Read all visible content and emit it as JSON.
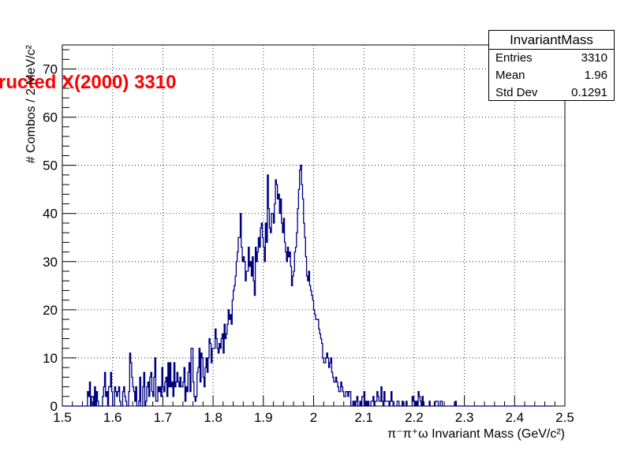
{
  "chart_data": {
    "type": "histogram",
    "title": "ructed X(2000) 3310",
    "xlabel": "π⁻π⁺ω Invariant Mass (GeV/c²)",
    "ylabel": "# Combos / 2 MeV/c²",
    "xlim": [
      1.5,
      2.5
    ],
    "ylim": [
      0,
      75
    ],
    "bin_width": 0.002,
    "grid": true,
    "line_color": "#000080",
    "title_color": "#ff0000",
    "x_ticks": [
      "1.5",
      "1.6",
      "1.7",
      "1.8",
      "1.9",
      "2",
      "2.1",
      "2.2",
      "2.3",
      "2.4",
      "2.5"
    ],
    "y_ticks": [
      "0",
      "10",
      "20",
      "30",
      "40",
      "50",
      "60",
      "70"
    ],
    "bin_centers": [
      1.501,
      1.503,
      1.505,
      1.507,
      1.509,
      1.511,
      1.513,
      1.515,
      1.517,
      1.519,
      1.521,
      1.523,
      1.525,
      1.527,
      1.529,
      1.531,
      1.533,
      1.535,
      1.537,
      1.539,
      1.541,
      1.543,
      1.545,
      1.547,
      1.549,
      1.551,
      1.553,
      1.555,
      1.557,
      1.559,
      1.561,
      1.563,
      1.565,
      1.567,
      1.569,
      1.571,
      1.573,
      1.575,
      1.577,
      1.579,
      1.581,
      1.583,
      1.585,
      1.587,
      1.589,
      1.591,
      1.593,
      1.595,
      1.597,
      1.599,
      1.601,
      1.603,
      1.605,
      1.607,
      1.609,
      1.611,
      1.613,
      1.615,
      1.617,
      1.619,
      1.621,
      1.623,
      1.625,
      1.627,
      1.629,
      1.631,
      1.633,
      1.635,
      1.637,
      1.639,
      1.641,
      1.643,
      1.645,
      1.647,
      1.649,
      1.651,
      1.653,
      1.655,
      1.657,
      1.659,
      1.661,
      1.663,
      1.665,
      1.667,
      1.669,
      1.671,
      1.673,
      1.675,
      1.677,
      1.679,
      1.681,
      1.683,
      1.685,
      1.687,
      1.689,
      1.691,
      1.693,
      1.695,
      1.697,
      1.699,
      1.701,
      1.703,
      1.705,
      1.707,
      1.709,
      1.711,
      1.713,
      1.715,
      1.717,
      1.719,
      1.721,
      1.723,
      1.725,
      1.727,
      1.729,
      1.731,
      1.733,
      1.735,
      1.737,
      1.739,
      1.741,
      1.743,
      1.745,
      1.747,
      1.749,
      1.751,
      1.753,
      1.755,
      1.757,
      1.759,
      1.761,
      1.763,
      1.765,
      1.767,
      1.769,
      1.771,
      1.773,
      1.775,
      1.777,
      1.779,
      1.781,
      1.783,
      1.785,
      1.787,
      1.789,
      1.791,
      1.793,
      1.795,
      1.797,
      1.799,
      1.801,
      1.803,
      1.805,
      1.807,
      1.809,
      1.811,
      1.813,
      1.815,
      1.817,
      1.819,
      1.821,
      1.823,
      1.825,
      1.827,
      1.829,
      1.831,
      1.833,
      1.835,
      1.837,
      1.839,
      1.841,
      1.843,
      1.845,
      1.847,
      1.849,
      1.851,
      1.853,
      1.855,
      1.857,
      1.859,
      1.861,
      1.863,
      1.865,
      1.867,
      1.869,
      1.871,
      1.873,
      1.875,
      1.877,
      1.879,
      1.881,
      1.883,
      1.885,
      1.887,
      1.889,
      1.891,
      1.893,
      1.895,
      1.897,
      1.899,
      1.901,
      1.903,
      1.905,
      1.907,
      1.909,
      1.911,
      1.913,
      1.915,
      1.917,
      1.919,
      1.921,
      1.923,
      1.925,
      1.927,
      1.929,
      1.931,
      1.933,
      1.935,
      1.937,
      1.939,
      1.941,
      1.943,
      1.945,
      1.947,
      1.949,
      1.951,
      1.953,
      1.955,
      1.957,
      1.959,
      1.961,
      1.963,
      1.965,
      1.967,
      1.969,
      1.971,
      1.973,
      1.975,
      1.977,
      1.979,
      1.981,
      1.983,
      1.985,
      1.987,
      1.989,
      1.991,
      1.993,
      1.995,
      1.997,
      1.999,
      2.001,
      2.003,
      2.005,
      2.007,
      2.009,
      2.011,
      2.013,
      2.015,
      2.017,
      2.019,
      2.021,
      2.023,
      2.025,
      2.027,
      2.029,
      2.031,
      2.033,
      2.035,
      2.037,
      2.039,
      2.041,
      2.043,
      2.045,
      2.047,
      2.049,
      2.051,
      2.053,
      2.055,
      2.057,
      2.059,
      2.061,
      2.063,
      2.065,
      2.067,
      2.069,
      2.071,
      2.073,
      2.075,
      2.077,
      2.079,
      2.081,
      2.083,
      2.085,
      2.087,
      2.089,
      2.091,
      2.093,
      2.095,
      2.097,
      2.099,
      2.101,
      2.103,
      2.105,
      2.107,
      2.109,
      2.111,
      2.113,
      2.115,
      2.117,
      2.119,
      2.121,
      2.123,
      2.125,
      2.127,
      2.129,
      2.131,
      2.133,
      2.135,
      2.137,
      2.139,
      2.141,
      2.143,
      2.145,
      2.147,
      2.149,
      2.151,
      2.153,
      2.155,
      2.157,
      2.159,
      2.161,
      2.163,
      2.165,
      2.167,
      2.169,
      2.171,
      2.173,
      2.175,
      2.177,
      2.179,
      2.181,
      2.183,
      2.185,
      2.187,
      2.189,
      2.191,
      2.193,
      2.195,
      2.197,
      2.199,
      2.201,
      2.203,
      2.205,
      2.207,
      2.209,
      2.211,
      2.213,
      2.215,
      2.217,
      2.219,
      2.221,
      2.223,
      2.225,
      2.227,
      2.229,
      2.231,
      2.233,
      2.235,
      2.237,
      2.239,
      2.241,
      2.243,
      2.245,
      2.247,
      2.249,
      2.251,
      2.253,
      2.255,
      2.257,
      2.259,
      2.261,
      2.263,
      2.265,
      2.267,
      2.269,
      2.271,
      2.273,
      2.275,
      2.277,
      2.279,
      2.281,
      2.283,
      2.285,
      2.287,
      2.289,
      2.291,
      2.293,
      2.295,
      2.297,
      2.299,
      2.301,
      2.303,
      2.305,
      2.307,
      2.309,
      2.311,
      2.313,
      2.315,
      2.317,
      2.319,
      2.321,
      2.323,
      2.325,
      2.327,
      2.329,
      2.331,
      2.333,
      2.335,
      2.337,
      2.339,
      2.341,
      2.343,
      2.345,
      2.347,
      2.349,
      2.351,
      2.353,
      2.355,
      2.357,
      2.359,
      2.361,
      2.363,
      2.365,
      2.367,
      2.369,
      2.371,
      2.373,
      2.375,
      2.377,
      2.379,
      2.381,
      2.383,
      2.385,
      2.387,
      2.389,
      2.391,
      2.393,
      2.395,
      2.397,
      2.399,
      2.401,
      2.403,
      2.405,
      2.407,
      2.409,
      2.411,
      2.413,
      2.415,
      2.417,
      2.419,
      2.421,
      2.423,
      2.425,
      2.427,
      2.429,
      2.431,
      2.433,
      2.435,
      2.437,
      2.439,
      2.441,
      2.443,
      2.445,
      2.447,
      2.449,
      2.451,
      2.453,
      2.455,
      2.457,
      2.459,
      2.461,
      2.463,
      2.465,
      2.467,
      2.469,
      2.471,
      2.473,
      2.475,
      2.477,
      2.479,
      2.481,
      2.483,
      2.485,
      2.487,
      2.489,
      2.491,
      2.493,
      2.495,
      2.497,
      2.499
    ],
    "counts": [
      0,
      0,
      0,
      0,
      0,
      0,
      0,
      0,
      0,
      0,
      0,
      0,
      0,
      0,
      0,
      0,
      0,
      0,
      0,
      0,
      0,
      0,
      0,
      0,
      0,
      3,
      2,
      5,
      0,
      2,
      2,
      0,
      4,
      0,
      3,
      1,
      0,
      0,
      0,
      0,
      2,
      4,
      7,
      2,
      3,
      0,
      4,
      4,
      7,
      3,
      0,
      0,
      4,
      3,
      2,
      3,
      4,
      1,
      0,
      0,
      3,
      4,
      2,
      1,
      0,
      0,
      3,
      11,
      9,
      6,
      4,
      3,
      1,
      4,
      0,
      0,
      1,
      6,
      0,
      0,
      4,
      7,
      0,
      1,
      4,
      5,
      2,
      6,
      7,
      3,
      2,
      6,
      10,
      1,
      1,
      4,
      3,
      4,
      2,
      8,
      4,
      3,
      5,
      6,
      2,
      9,
      4,
      9,
      4,
      5,
      2,
      9,
      4,
      5,
      7,
      5,
      4,
      6,
      4,
      4,
      5,
      8,
      1,
      4,
      3,
      7,
      9,
      3,
      12,
      12,
      5,
      2,
      1,
      2,
      7,
      8,
      12,
      5,
      11,
      10,
      6,
      4,
      8,
      10,
      7,
      10,
      14,
      13,
      9,
      12,
      12,
      12,
      16,
      14,
      12,
      11,
      13,
      12,
      14,
      15,
      11,
      17,
      14,
      15,
      17,
      20,
      18,
      19,
      17,
      22,
      24,
      25,
      27,
      30,
      32,
      35,
      35,
      40,
      33,
      30,
      31,
      30,
      26,
      28,
      28,
      33,
      29,
      30,
      27,
      31,
      26,
      23,
      33,
      30,
      32,
      35,
      33,
      37,
      38,
      35,
      33,
      30,
      38,
      34,
      48,
      41,
      37,
      36,
      40,
      40,
      38,
      42,
      47,
      46,
      43,
      44,
      40,
      43,
      38,
      36,
      39,
      34,
      32,
      30,
      33,
      31,
      32,
      29,
      25,
      27,
      28,
      32,
      33,
      36,
      41,
      45,
      49,
      50,
      46,
      43,
      38,
      35,
      31,
      27,
      26,
      28,
      25,
      24,
      23,
      22,
      20,
      19,
      18,
      18,
      18,
      16,
      15,
      14,
      13,
      10,
      9,
      9,
      10,
      11,
      10,
      8,
      9,
      10,
      7,
      6,
      5,
      5,
      6,
      5,
      4,
      3,
      3,
      5,
      4,
      3,
      2,
      2,
      3,
      3,
      2,
      3,
      3,
      0,
      0,
      1,
      1,
      0,
      1,
      2,
      0,
      0,
      1,
      0,
      2,
      2,
      3,
      0,
      1,
      0,
      1,
      0,
      0,
      1,
      1,
      2,
      0,
      1,
      1,
      3,
      2,
      1,
      1,
      4,
      1,
      0,
      3,
      1,
      1,
      1,
      1,
      0,
      1,
      3,
      1,
      0,
      0,
      0,
      0,
      1,
      1,
      0,
      0,
      0,
      1,
      0,
      0,
      0,
      1,
      0,
      0,
      0,
      0,
      0,
      2,
      1,
      1,
      0,
      1,
      0,
      3,
      2,
      1,
      0,
      2,
      0,
      0,
      0,
      0,
      0,
      0,
      1,
      0,
      0,
      0,
      0,
      0,
      1,
      1,
      1,
      0,
      0,
      1,
      1,
      0,
      0,
      0,
      0,
      0,
      0,
      0,
      0,
      0,
      0,
      0,
      0,
      0,
      1,
      0,
      0,
      0,
      0,
      0,
      0,
      0,
      0,
      0,
      0,
      0,
      0,
      0,
      0,
      0,
      0,
      0,
      0,
      0,
      0,
      0,
      0,
      0,
      0,
      0,
      0,
      0,
      0,
      0,
      0,
      0,
      0,
      0,
      0,
      0,
      0,
      0,
      0,
      0,
      0,
      0,
      0,
      0,
      0,
      0,
      0,
      0,
      0,
      0,
      0,
      0,
      0,
      0,
      0,
      0,
      0,
      0,
      0,
      0,
      0,
      0,
      0,
      0,
      0,
      0,
      0,
      0,
      0,
      0,
      0,
      0,
      0,
      0,
      0,
      0,
      0,
      0,
      0,
      0,
      0,
      0,
      0,
      0,
      0,
      0,
      0,
      0,
      0,
      0,
      0,
      0,
      0,
      0,
      0,
      0
    ]
  },
  "stats": {
    "name": "InvariantMass",
    "rows": [
      {
        "label": "Entries",
        "value": "3310"
      },
      {
        "label": "Mean",
        "value": "1.96"
      },
      {
        "label": "Std Dev",
        "value": "0.1291"
      }
    ]
  }
}
